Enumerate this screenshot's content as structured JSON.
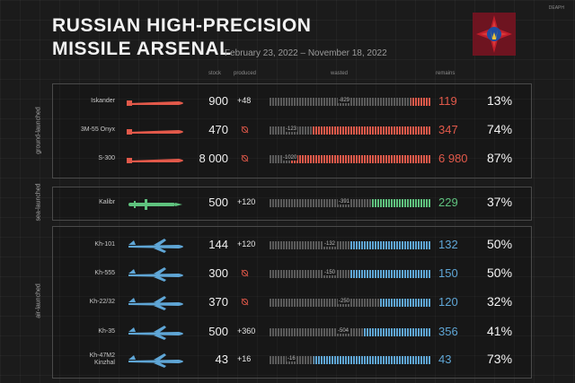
{
  "title_line1": "RUSSIAN HIGH-PRECISION",
  "title_line2": "MISSILE ARSENAL",
  "date_range": "February 23, 2022 – November 18, 2022",
  "credit": "DEAPH",
  "columns": {
    "stock": "stock",
    "produced": "produced",
    "wasted": "wasted",
    "remains": "remains"
  },
  "groups": [
    "ground-launched",
    "sea-launched",
    "air-launched"
  ],
  "colors": {
    "ground": "#e2594a",
    "sea": "#5fc27e",
    "air": "#5fa6d6",
    "wasted": "#5a5a5a"
  },
  "chart_data": {
    "type": "table",
    "rows": [
      {
        "name": "Iskander",
        "group": "ground",
        "stock": "900",
        "produced": "+48",
        "wasted": "-829",
        "remains": "119",
        "percent": "13%"
      },
      {
        "name": "3M-55 Onyx",
        "group": "ground",
        "stock": "470",
        "produced": "",
        "wasted": "-123",
        "remains": "347",
        "percent": "74%"
      },
      {
        "name": "S-300",
        "group": "ground",
        "stock": "8 000",
        "produced": "",
        "wasted": "-1020",
        "remains": "6 980",
        "percent": "87%"
      },
      {
        "name": "Kalibr",
        "group": "sea",
        "stock": "500",
        "produced": "+120",
        "wasted": "-391",
        "remains": "229",
        "percent": "37%"
      },
      {
        "name": "Kh-101",
        "group": "air",
        "stock": "144",
        "produced": "+120",
        "wasted": "-132",
        "remains": "132",
        "percent": "50%"
      },
      {
        "name": "Kh-555",
        "group": "air",
        "stock": "300",
        "produced": "",
        "wasted": "-150",
        "remains": "150",
        "percent": "50%"
      },
      {
        "name": "Kh-22/32",
        "group": "air",
        "stock": "370",
        "produced": "",
        "wasted": "-250",
        "remains": "120",
        "percent": "32%"
      },
      {
        "name": "Kh-35",
        "group": "air",
        "stock": "500",
        "produced": "+360",
        "wasted": "-504",
        "remains": "356",
        "percent": "41%"
      },
      {
        "name": "Kh-47M2 Kinzhal",
        "group": "air",
        "stock": "43",
        "produced": "+16",
        "wasted": "-16",
        "remains": "43",
        "percent": "73%"
      }
    ]
  }
}
